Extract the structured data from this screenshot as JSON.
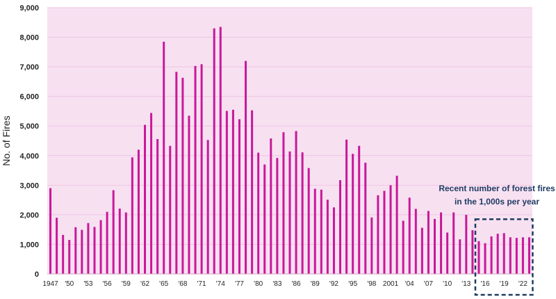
{
  "chart_data": {
    "type": "bar",
    "title": "",
    "xlabel": "",
    "ylabel": "No. of Fires",
    "ylim": [
      0,
      9000
    ],
    "yticks": [
      0,
      1000,
      2000,
      3000,
      4000,
      5000,
      6000,
      7000,
      8000,
      9000
    ],
    "ytick_labels": [
      "0",
      "1,000",
      "2,000",
      "3,000",
      "4,000",
      "5,000",
      "6,000",
      "7,000",
      "8,000",
      "9,000"
    ],
    "grid": true,
    "legend": "none",
    "categories": [
      1947,
      1948,
      1949,
      1950,
      1951,
      1952,
      1953,
      1954,
      1955,
      1956,
      1957,
      1958,
      1959,
      1960,
      1961,
      1962,
      1963,
      1964,
      1965,
      1966,
      1967,
      1968,
      1969,
      1970,
      1971,
      1972,
      1973,
      1974,
      1975,
      1976,
      1977,
      1978,
      1979,
      1980,
      1981,
      1982,
      1983,
      1984,
      1985,
      1986,
      1987,
      1988,
      1989,
      1990,
      1991,
      1992,
      1993,
      1994,
      1995,
      1996,
      1997,
      1998,
      1999,
      2000,
      2001,
      2002,
      2003,
      2004,
      2005,
      2006,
      2007,
      2008,
      2009,
      2010,
      2011,
      2012,
      2013,
      2014,
      2015,
      2016,
      2017,
      2018,
      2019,
      2020,
      2021,
      2022,
      2023
    ],
    "values": [
      2900,
      1900,
      1320,
      1150,
      1580,
      1490,
      1720,
      1590,
      1820,
      2100,
      2830,
      2210,
      2080,
      3940,
      4200,
      5040,
      5440,
      4560,
      7850,
      4330,
      6830,
      6630,
      5350,
      7030,
      7090,
      4530,
      8300,
      8350,
      5510,
      5550,
      5230,
      7200,
      5530,
      4100,
      3700,
      4580,
      3920,
      4790,
      4140,
      4830,
      4110,
      3580,
      2880,
      2850,
      2510,
      2250,
      3170,
      4540,
      4060,
      4330,
      3760,
      1910,
      2660,
      2810,
      3000,
      3320,
      1800,
      2580,
      2200,
      1560,
      2130,
      1860,
      2080,
      1400,
      2080,
      1170,
      2000,
      1480,
      1110,
      1040,
      1270,
      1360,
      1380,
      1240,
      1220,
      1240,
      1240
    ],
    "xtick_labels": [
      {
        "year": 1947,
        "label": "1947"
      },
      {
        "year": 1950,
        "label": "'50"
      },
      {
        "year": 1953,
        "label": "'53"
      },
      {
        "year": 1956,
        "label": "'56"
      },
      {
        "year": 1959,
        "label": "'59"
      },
      {
        "year": 1962,
        "label": "'62"
      },
      {
        "year": 1965,
        "label": "'65"
      },
      {
        "year": 1968,
        "label": "'68"
      },
      {
        "year": 1971,
        "label": "'71"
      },
      {
        "year": 1974,
        "label": "'74"
      },
      {
        "year": 1977,
        "label": "'77"
      },
      {
        "year": 1980,
        "label": "'80"
      },
      {
        "year": 1983,
        "label": "'83"
      },
      {
        "year": 1986,
        "label": "'86"
      },
      {
        "year": 1989,
        "label": "'89"
      },
      {
        "year": 1992,
        "label": "'92"
      },
      {
        "year": 1995,
        "label": "'95"
      },
      {
        "year": 1998,
        "label": "'98"
      },
      {
        "year": 2001,
        "label": "2001"
      },
      {
        "year": 2004,
        "label": "'04"
      },
      {
        "year": 2007,
        "label": "'07"
      },
      {
        "year": 2010,
        "label": "'10"
      },
      {
        "year": 2013,
        "label": "'13"
      },
      {
        "year": 2016,
        "label": "'16"
      },
      {
        "year": 2019,
        "label": "'19"
      },
      {
        "year": 2022,
        "label": "'22"
      }
    ],
    "annotation": {
      "lines": [
        "Recent number of forest fires",
        "in the 1,000s per year"
      ],
      "range": [
        2015,
        2023
      ]
    }
  },
  "colors": {
    "bar": "#c8189a",
    "plot_background": "#f7e1f1",
    "gridline": "#efc4e3",
    "annotation": "#1f3b63"
  }
}
